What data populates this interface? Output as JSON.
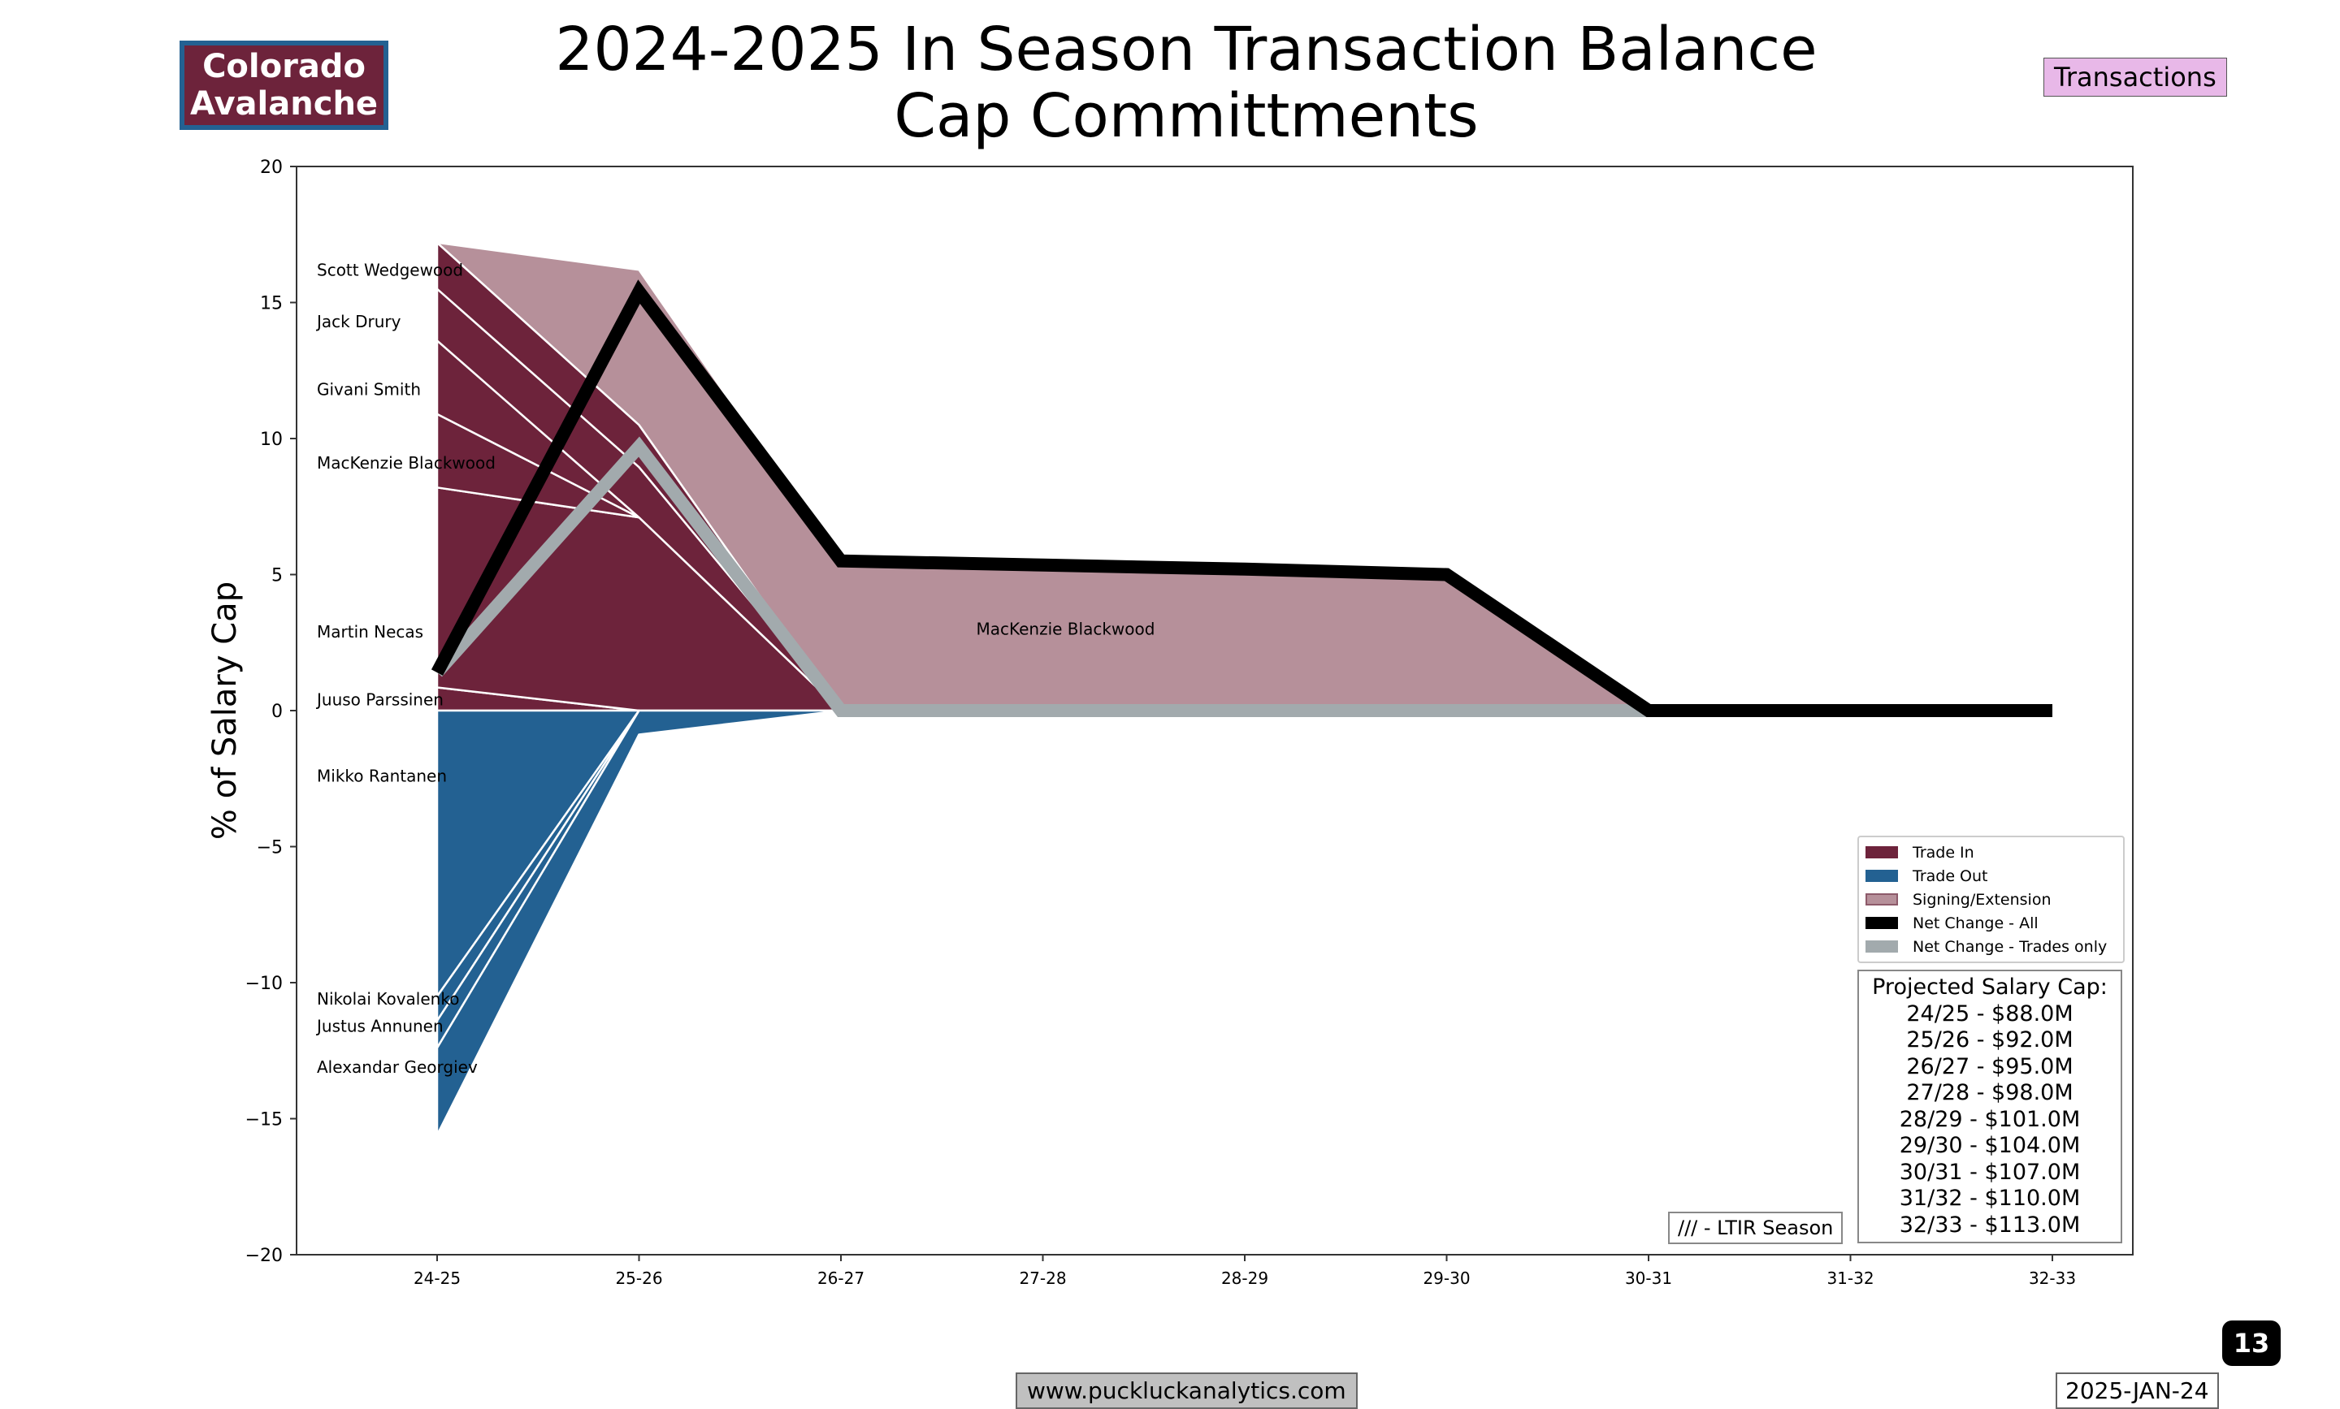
{
  "header": {
    "title_line1": "2024-2025 In Season Transaction Balance",
    "title_line2": "Cap Committments",
    "team_line1": "Colorado",
    "team_line2": "Avalanche",
    "section_badge": "Transactions"
  },
  "footer": {
    "url": "www.puckluckanalytics.com",
    "date": "2025-JAN-24",
    "page_number": "13"
  },
  "ltir_note": "/// - LTIR Season",
  "cap_box": {
    "title": "Projected Salary Cap:",
    "lines": [
      "24/25 - $88.0M",
      "25/26 - $92.0M",
      "26/27 - $95.0M",
      "27/28 - $98.0M",
      "28/29 - $101.0M",
      "29/30 - $104.0M",
      "30/31 - $107.0M",
      "31/32 - $110.0M",
      "32/33 - $113.0M"
    ]
  },
  "colors": {
    "trade_in": "#6d233b",
    "trade_out": "#236192",
    "signing": "#b6909a",
    "net_all": "#000000",
    "net_trades": "#a2aaad"
  },
  "chart_data": {
    "type": "area",
    "ylabel": "% of Salary Cap",
    "ylim": [
      -20,
      20
    ],
    "yticks": [
      "20",
      "15",
      "10",
      "5",
      "0",
      "−5",
      "−10",
      "−15",
      "−20"
    ],
    "ytick_values": [
      20,
      15,
      10,
      5,
      0,
      -5,
      -10,
      -15,
      -20
    ],
    "categories": [
      "24-25",
      "25-26",
      "26-27",
      "27-28",
      "28-29",
      "29-30",
      "30-31",
      "31-32",
      "32-33"
    ],
    "legend": [
      "Trade In",
      "Trade Out",
      "Signing/Extension",
      "Net Change - All",
      "Net Change - Trades only"
    ],
    "legend_placement": "lower-right",
    "trade_in": [
      {
        "name": "Juuso Parssinen",
        "values": [
          0.85,
          0,
          0,
          0,
          0,
          0,
          0,
          0,
          0
        ],
        "label_y": 0.4
      },
      {
        "name": "Martin Necas",
        "values": [
          7.35,
          7.1,
          0,
          0,
          0,
          0,
          0,
          0,
          0
        ],
        "label_y": 2.9
      },
      {
        "name": "MacKenzie Blackwood",
        "values": [
          2.7,
          0,
          0,
          0,
          0,
          0,
          0,
          0,
          0
        ],
        "label_y": 9.1
      },
      {
        "name": "Givani Smith",
        "values": [
          2.7,
          0,
          0,
          0,
          0,
          0,
          0,
          0,
          0
        ],
        "label_y": 11.8
      },
      {
        "name": "Jack Drury",
        "values": [
          1.9,
          1.85,
          0,
          0,
          0,
          0,
          0,
          0,
          0
        ],
        "label_y": 14.3
      },
      {
        "name": "Scott Wedgewood",
        "values": [
          1.7,
          1.55,
          0,
          0,
          0,
          0,
          0,
          0,
          0
        ],
        "label_y": 16.2
      }
    ],
    "trade_out": [
      {
        "name": "Mikko Rantanen",
        "values": [
          -10.5,
          0,
          0,
          0,
          0,
          0,
          0,
          0,
          0
        ],
        "label_y": -2.4
      },
      {
        "name": "Nikolai Kovalenko",
        "values": [
          -0.9,
          0,
          0,
          0,
          0,
          0,
          0,
          0,
          0
        ],
        "label_y": -10.6
      },
      {
        "name": "Justus Annunen",
        "values": [
          -1.0,
          0,
          0,
          0,
          0,
          0,
          0,
          0,
          0
        ],
        "label_y": -11.6
      },
      {
        "name": "Alexandar Georgiev",
        "values": [
          -3.2,
          -0.88,
          0,
          0,
          0,
          0,
          0,
          0,
          0
        ],
        "label_y": -13.1
      }
    ],
    "signing": [
      {
        "name": "MacKenzie Blackwood",
        "values": [
          0,
          5.7,
          5.5,
          5.35,
          5.2,
          5.0,
          0,
          0,
          0
        ],
        "label_x": 2.67,
        "label_y": 3.0
      }
    ],
    "net_all": [
      1.4,
      15.4,
      5.5,
      5.35,
      5.2,
      5.0,
      0,
      0,
      0
    ],
    "net_trades": [
      1.4,
      9.7,
      0,
      0,
      0,
      0,
      0,
      null,
      null
    ]
  }
}
